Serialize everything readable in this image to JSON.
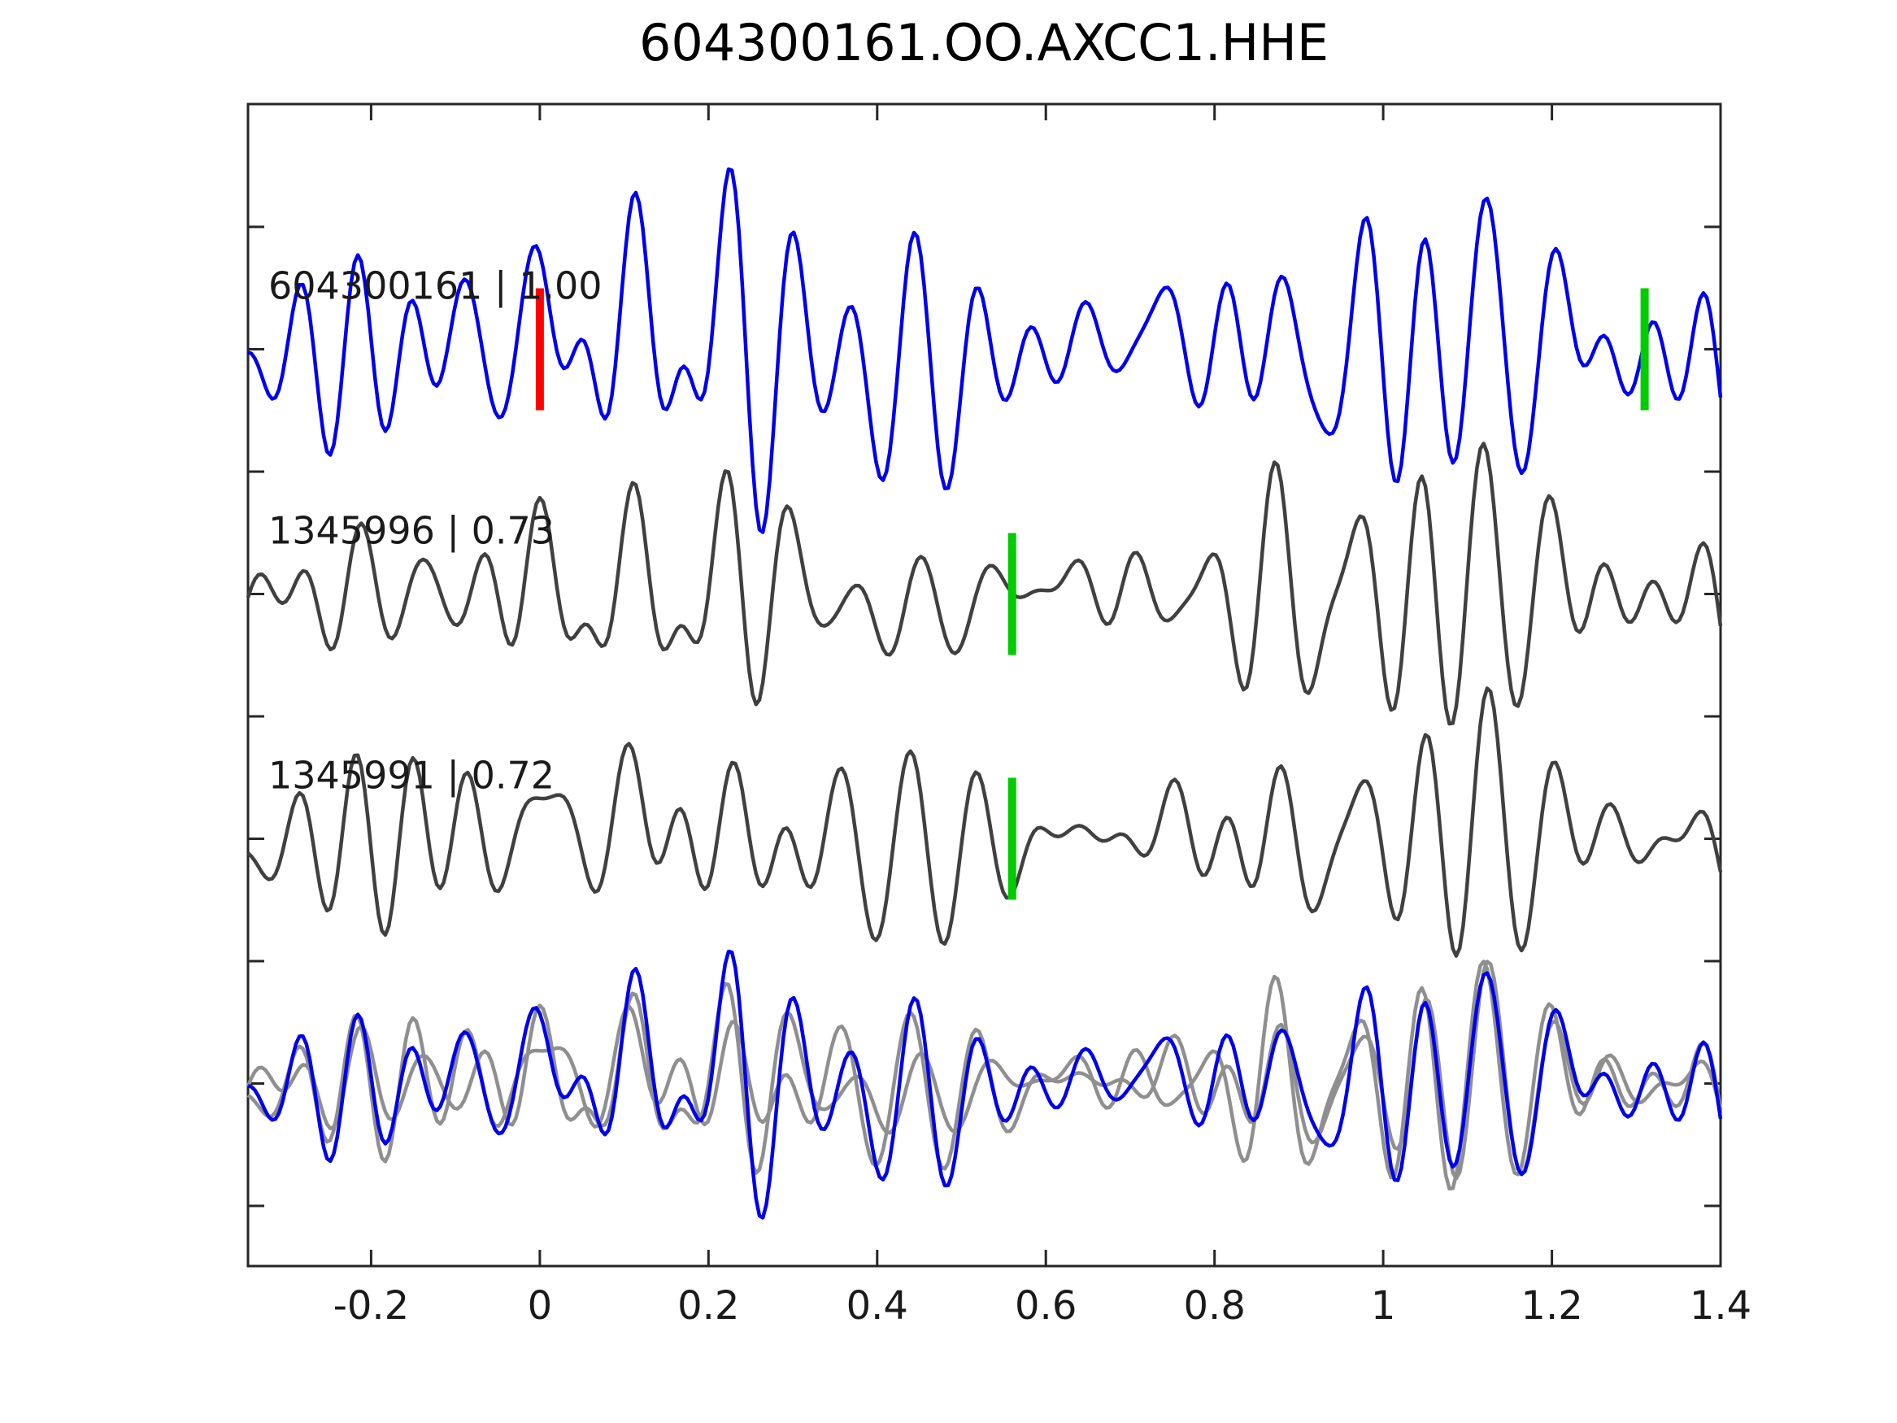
{
  "chart_data": {
    "type": "line",
    "title": "604300161.OO.AXCC1.HHE",
    "xlabel": "",
    "ylabel": "",
    "xlim": [
      -0.346,
      1.4
    ],
    "x_ticks": [
      -0.2,
      0,
      0.2,
      0.4,
      0.6,
      0.8,
      1,
      1.2,
      1.4
    ],
    "x_tick_labels": [
      "-0.2",
      "0",
      "0.2",
      "0.4",
      "0.6",
      "0.8",
      "1",
      "1.2",
      "1.4"
    ],
    "y_tick_count": 9,
    "grid": false,
    "legend_position": "none",
    "colors": {
      "template": "#0000f0",
      "detection": "#404040",
      "overlay_detection": "#8f8f8f",
      "pick_template": "#ff0000",
      "pick_detection": "#00cc00",
      "frame": "#262626",
      "text": "#1a1a1a"
    },
    "rows": [
      {
        "kind": "single",
        "trace_id": "604300161",
        "correlation": 1.0,
        "label": "604300161 | 1.00",
        "color_key": "template",
        "markers": [
          {
            "t": 0.0,
            "color_key": "pick_template"
          },
          {
            "t": 1.31,
            "color_key": "pick_detection"
          }
        ]
      },
      {
        "kind": "single",
        "trace_id": "1345996",
        "correlation": 0.73,
        "label": "1345996 | 0.73",
        "color_key": "detection",
        "markers": [
          {
            "t": 0.56,
            "color_key": "pick_detection"
          }
        ]
      },
      {
        "kind": "single",
        "trace_id": "1345991",
        "correlation": 0.72,
        "label": "1345991 | 0.72",
        "color_key": "detection",
        "markers": [
          {
            "t": 0.56,
            "color_key": "pick_detection"
          }
        ]
      },
      {
        "kind": "overlay",
        "label": "",
        "traces": [
          {
            "ref": "1345996",
            "color_key": "overlay_detection"
          },
          {
            "ref": "1345991",
            "color_key": "overlay_detection"
          },
          {
            "ref": "604300161",
            "color_key": "template"
          }
        ],
        "markers": []
      }
    ]
  }
}
